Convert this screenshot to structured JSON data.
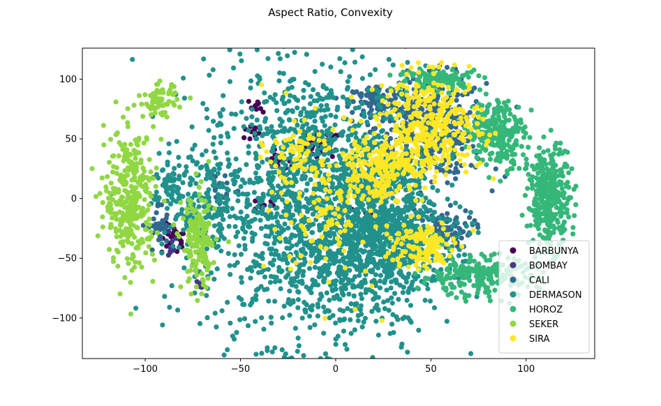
{
  "chart_data": {
    "type": "scatter",
    "title": "Aspect Ratio, Convexity",
    "xlabel": "",
    "ylabel": "",
    "xlim": [
      -133,
      136
    ],
    "ylim": [
      -134,
      126
    ],
    "xticks": [
      -100,
      -50,
      0,
      50,
      100
    ],
    "yticks": [
      -100,
      -50,
      0,
      50,
      100
    ],
    "grid": false,
    "legend_position": "lower-right",
    "series": [
      {
        "name": "BARBUNYA",
        "color": "#440154",
        "clusters": [
          [
            -8,
            45,
            10,
            10,
            45
          ],
          [
            -40,
            78,
            5,
            5,
            10
          ],
          [
            -45,
            55,
            6,
            6,
            12
          ],
          [
            -30,
            30,
            6,
            8,
            15
          ],
          [
            -85,
            -35,
            6,
            12,
            25
          ],
          [
            -38,
            -5,
            5,
            5,
            10
          ],
          [
            15,
            -12,
            5,
            5,
            8
          ]
        ]
      },
      {
        "name": "BOMBAY",
        "color": "#443983",
        "clusters": [
          [
            -88,
            -40,
            5,
            8,
            8
          ],
          [
            -72,
            -72,
            4,
            4,
            4
          ],
          [
            -88,
            -25,
            4,
            4,
            5
          ]
        ]
      },
      {
        "name": "CALI",
        "color": "#31688e",
        "clusters": [
          [
            50,
            60,
            26,
            38,
            420
          ],
          [
            20,
            80,
            12,
            15,
            80
          ],
          [
            -60,
            10,
            10,
            20,
            20
          ],
          [
            -93,
            -25,
            5,
            20,
            30
          ],
          [
            55,
            -25,
            15,
            15,
            100
          ]
        ]
      },
      {
        "name": "DERMASON",
        "color": "#21918c",
        "clusters": [
          [
            -10,
            -5,
            52,
            105,
            1700
          ],
          [
            25,
            -30,
            28,
            55,
            700
          ],
          [
            -70,
            -10,
            14,
            55,
            160
          ],
          [
            -88,
            10,
            8,
            25,
            60
          ]
        ]
      },
      {
        "name": "HOROZ",
        "color": "#35b779",
        "clusters": [
          [
            112,
            0,
            10,
            38,
            340
          ],
          [
            85,
            55,
            13,
            25,
            240
          ],
          [
            75,
            -65,
            28,
            16,
            240
          ],
          [
            55,
            100,
            20,
            8,
            120
          ]
        ]
      },
      {
        "name": "SEKER",
        "color": "#90d743",
        "clusters": [
          [
            -108,
            0,
            12,
            52,
            330
          ],
          [
            -92,
            82,
            8,
            12,
            70
          ],
          [
            -72,
            -38,
            8,
            38,
            160
          ]
        ]
      },
      {
        "name": "SIRA",
        "color": "#fde725",
        "clusters": [
          [
            50,
            60,
            25,
            38,
            360
          ],
          [
            20,
            25,
            18,
            25,
            200
          ],
          [
            45,
            -40,
            15,
            20,
            120
          ],
          [
            0,
            -10,
            30,
            60,
            120
          ],
          [
            -20,
            40,
            15,
            20,
            60
          ]
        ]
      }
    ]
  }
}
